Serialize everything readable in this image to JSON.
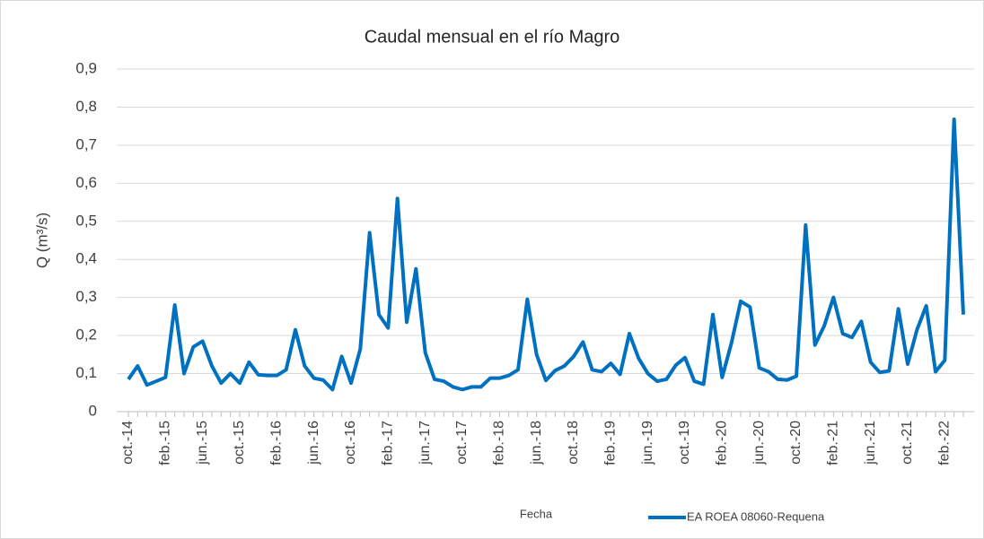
{
  "chart_data": {
    "type": "line",
    "title": "Caudal mensual en el río Magro",
    "x_label": "Fecha",
    "y_label": "Q (m³/s)",
    "categories": [
      "oct.-14",
      null,
      null,
      null,
      "feb.-15",
      null,
      null,
      null,
      "jun.-15",
      null,
      null,
      null,
      "oct.-15",
      null,
      null,
      null,
      "feb.-16",
      null,
      null,
      null,
      "jun.-16",
      null,
      null,
      null,
      "oct.-16",
      null,
      null,
      null,
      "feb.-17",
      null,
      null,
      null,
      "jun.-17",
      null,
      null,
      null,
      "oct.-17",
      null,
      null,
      null,
      "feb.-18",
      null,
      null,
      null,
      "jun.-18",
      null,
      null,
      null,
      "oct.-18",
      null,
      null,
      null,
      "feb.-19",
      null,
      null,
      null,
      "jun.-19",
      null,
      null,
      null,
      "oct.-19",
      null,
      null,
      null,
      "feb.-20",
      null,
      null,
      null,
      "jun.-20",
      null,
      null,
      null,
      "oct.-20",
      null,
      null,
      null,
      "feb.-21",
      null,
      null,
      null,
      "jun.-21",
      null,
      null,
      null,
      "oct.-21",
      null,
      null,
      null,
      "feb.-22",
      null,
      null
    ],
    "series": [
      {
        "name": "EA ROEA 08060-Requena",
        "color": "#0070c0",
        "values": [
          0.085,
          0.12,
          0.07,
          0.08,
          0.09,
          0.28,
          0.1,
          0.17,
          0.185,
          0.12,
          0.075,
          0.1,
          0.075,
          0.13,
          0.097,
          0.095,
          0.095,
          0.11,
          0.215,
          0.12,
          0.088,
          0.083,
          0.058,
          0.145,
          0.075,
          0.165,
          0.47,
          0.255,
          0.22,
          0.56,
          0.235,
          0.375,
          0.155,
          0.085,
          0.08,
          0.065,
          0.058,
          0.065,
          0.065,
          0.088,
          0.088,
          0.095,
          0.11,
          0.295,
          0.15,
          0.082,
          0.108,
          0.12,
          0.145,
          0.183,
          0.11,
          0.105,
          0.127,
          0.098,
          0.205,
          0.14,
          0.1,
          0.08,
          0.085,
          0.122,
          0.142,
          0.08,
          0.072,
          0.255,
          0.09,
          0.18,
          0.29,
          0.275,
          0.115,
          0.105,
          0.085,
          0.083,
          0.093,
          0.49,
          0.175,
          0.225,
          0.3,
          0.205,
          0.195,
          0.237,
          0.13,
          0.103,
          0.107,
          0.27,
          0.125,
          0.215,
          0.278,
          0.105,
          0.135,
          0.768,
          0.255
        ]
      }
    ],
    "ylim": [
      0,
      0.9
    ],
    "yticks": [
      0,
      {
        "value": 0.1,
        "label": "0,1"
      },
      {
        "value": 0.2,
        "label": "0,2"
      },
      {
        "value": 0.3,
        "label": "0,3"
      },
      {
        "value": 0.4,
        "label": "0,4"
      },
      {
        "value": 0.5,
        "label": "0,5"
      },
      {
        "value": 0.6,
        "label": "0,6"
      },
      {
        "value": 0.7,
        "label": "0,7"
      },
      {
        "value": 0.8,
        "label": "0,8"
      },
      {
        "value": 0.9,
        "label": "0,9"
      }
    ],
    "grid": true,
    "legend": "bottom-right"
  }
}
